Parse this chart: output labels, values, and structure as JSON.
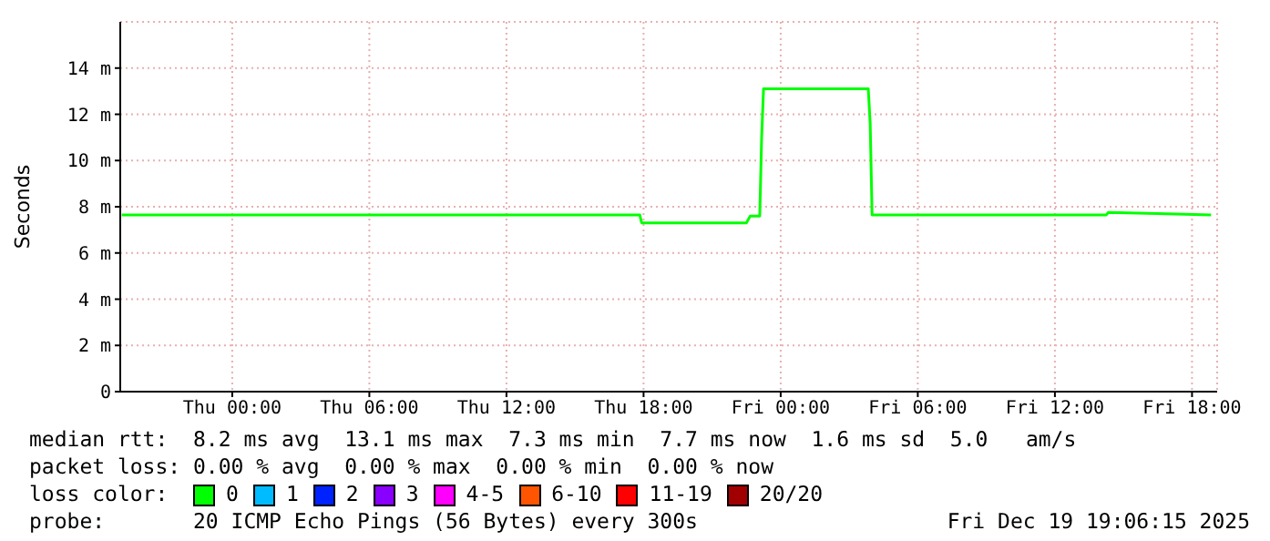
{
  "chart_data": {
    "type": "line",
    "ylabel": "Seconds",
    "xlim": [
      "2025-12-17T19:06",
      "2025-12-19T19:06"
    ],
    "xticks": [
      {
        "value": "2025-12-18T00:00",
        "label": "Thu 00:00"
      },
      {
        "value": "2025-12-18T06:00",
        "label": "Thu 06:00"
      },
      {
        "value": "2025-12-18T12:00",
        "label": "Thu 12:00"
      },
      {
        "value": "2025-12-18T18:00",
        "label": "Thu 18:00"
      },
      {
        "value": "2025-12-19T00:00",
        "label": "Fri 00:00"
      },
      {
        "value": "2025-12-19T06:00",
        "label": "Fri 06:00"
      },
      {
        "value": "2025-12-19T12:00",
        "label": "Fri 12:00"
      },
      {
        "value": "2025-12-19T18:00",
        "label": "Fri 18:00"
      }
    ],
    "ylim": [
      0,
      16
    ],
    "yticks": [
      0,
      {
        "value": 2,
        "label": "2 m"
      },
      {
        "value": 4,
        "label": "4 m"
      },
      {
        "value": 6,
        "label": "6 m"
      },
      {
        "value": 8,
        "label": "8 m"
      },
      {
        "value": 10,
        "label": "10 m"
      },
      {
        "value": 12,
        "label": "12 m"
      },
      {
        "value": 14,
        "label": "14 m"
      }
    ],
    "grid": true,
    "legend": "bottom",
    "legend_title": "loss color:",
    "marker": "none",
    "line_style": "solid",
    "series": [
      {
        "name": "0",
        "color": "#00ff00",
        "x": [
          "2025-12-17T19:10",
          "2025-12-18T02:00",
          "2025-12-18T09:00",
          "2025-12-18T17:50",
          "2025-12-18T17:55",
          "2025-12-18T22:30",
          "2025-12-18T22:40",
          "2025-12-18T23:05",
          "2025-12-18T23:10",
          "2025-12-18T23:15",
          "2025-12-19T03:50",
          "2025-12-19T03:55",
          "2025-12-19T04:00",
          "2025-12-19T09:00",
          "2025-12-19T14:15",
          "2025-12-19T14:20",
          "2025-12-19T16:30",
          "2025-12-19T18:50"
        ],
        "values": [
          7.65,
          7.65,
          7.65,
          7.65,
          7.3,
          7.3,
          7.6,
          7.6,
          11,
          13.1,
          13.1,
          11.6,
          7.65,
          7.65,
          7.65,
          7.75,
          7.7,
          7.65
        ]
      },
      {
        "name": "1",
        "color": "#00bbff"
      },
      {
        "name": "2",
        "color": "#0022ff"
      },
      {
        "name": "3",
        "color": "#8a00ff"
      },
      {
        "name": "4-5",
        "color": "#ff00ff"
      },
      {
        "name": "6-10",
        "color": "#ff5500"
      },
      {
        "name": "11-19",
        "color": "#ff0000"
      },
      {
        "name": "20/20",
        "color": "#a10000"
      }
    ],
    "annotations": [
      "median rtt:  8.2 ms avg  13.1 ms max  7.3 ms min  7.7 ms now  1.6 ms sd  5.0   am/s",
      "packet loss: 0.00 % avg  0.00 % max  0.00 % min  0.00 % now",
      "probe:       20 ICMP Echo Pings (56 Bytes) every 300s",
      "Fri Dec 19 19:06:15 2025"
    ]
  }
}
